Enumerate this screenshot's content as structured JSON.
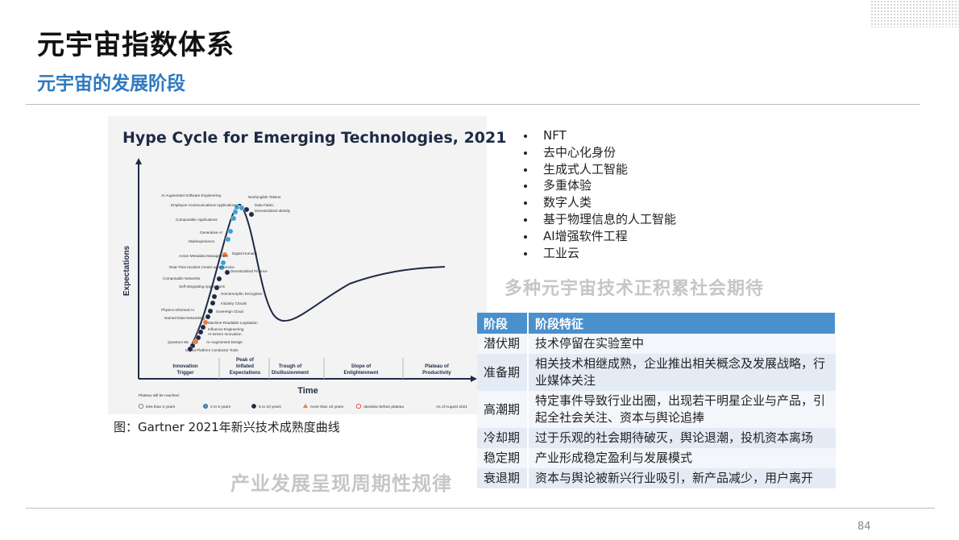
{
  "page": {
    "title": "元宇宙指数体系",
    "subtitle": "元宇宙的发展阶段",
    "page_number": "84"
  },
  "figure": {
    "title": "Hype Cycle for Emerging Technologies, 2021",
    "y_axis_label": "Expectations",
    "x_axis_label": "Time",
    "phases": [
      [
        "Innovation",
        "Trigger"
      ],
      [
        "Peak of",
        "Inflated",
        "Expectations"
      ],
      [
        "Trough of",
        "Disillusionment"
      ],
      [
        "Slope of",
        "Enlightenment"
      ],
      [
        "Plateau of",
        "Productivity"
      ]
    ],
    "legend_title": "Plateau will be reached:",
    "legend": [
      {
        "label": "less than 2 years",
        "color": "#ffffff"
      },
      {
        "label": "2 to 5 years",
        "color": "#3aa0d8"
      },
      {
        "label": "5 to 10 years",
        "color": "#1e2a45"
      },
      {
        "label": "more than 10 years",
        "color": "#f07a38"
      },
      {
        "label": "obsolete before plateau",
        "color": "#e05050"
      }
    ],
    "date_note": "As of August 2021",
    "technologies": [
      {
        "name": "AI Augmented Software Engineering",
        "color": "#3aa0d8"
      },
      {
        "name": "Nonfungible Tokens",
        "color": "#3aa0d8"
      },
      {
        "name": "Employee Communications Applications",
        "color": "#3aa0d8"
      },
      {
        "name": "Data Fabric",
        "color": "#1e2a45"
      },
      {
        "name": "Decentralized Identity",
        "color": "#1e2a45"
      },
      {
        "name": "Composable Applications",
        "color": "#3aa0d8"
      },
      {
        "name": "Generative AI",
        "color": "#3aa0d8"
      },
      {
        "name": "Multiexperience",
        "color": "#3aa0d8"
      },
      {
        "name": "Digital Humans",
        "color": "#f07a38"
      },
      {
        "name": "Active Metadata Management",
        "color": "#3aa0d8"
      },
      {
        "name": "Real-Time Incident Center-as-a-Service",
        "color": "#3aa0d8"
      },
      {
        "name": "Decentralized Finance",
        "color": "#1e2a45"
      },
      {
        "name": "Composable Networks",
        "color": "#1e2a45"
      },
      {
        "name": "Self-Integrating Applications",
        "color": "#1e2a45"
      },
      {
        "name": "Homomorphic Encryption",
        "color": "#1e2a45"
      },
      {
        "name": "Industry Clouds",
        "color": "#1e2a45"
      },
      {
        "name": "Physics-Informed AI",
        "color": "#1e2a45"
      },
      {
        "name": "Sovereign Cloud",
        "color": "#1e2a45"
      },
      {
        "name": "Named Data Networking",
        "color": "#f07a38"
      },
      {
        "name": "Machine-Readable Legislation",
        "color": "#1e2a45"
      },
      {
        "name": "Influence Engineering",
        "color": "#1e2a45"
      },
      {
        "name": "AI-Driven Innovation",
        "color": "#1e2a45"
      },
      {
        "name": "Quantum ML",
        "color": "#f07a38"
      },
      {
        "name": "AI-Augmented Design",
        "color": "#1e2a45"
      },
      {
        "name": "Digital Platform Conductor Tools",
        "color": "#1e2a45"
      }
    ],
    "caption": "图：Gartner 2021年新兴技术成熟度曲线",
    "overlay_text": "产业发展呈现周期性规律"
  },
  "bullets": {
    "items": [
      "NFT",
      "去中心化身份",
      "生成式人工智能",
      "多重体验",
      "数字人类",
      "基于物理信息的人工智能",
      "AI增强软件工程",
      "工业云"
    ],
    "overlay_text": "多种元宇宙技术正积累社会期待"
  },
  "table": {
    "headers": [
      "阶段",
      "阶段特征"
    ],
    "rows": [
      {
        "stage": "潜伏期",
        "desc": "技术停留在实验室中"
      },
      {
        "stage": "准备期",
        "desc": "相关技术相继成熟，企业推出相关概念及发展战略，行业媒体关注"
      },
      {
        "stage": "高潮期",
        "desc": "特定事件导致行业出圈，出现若干明星企业与产品，引起全社会关注、资本与舆论追捧"
      },
      {
        "stage": "冷却期",
        "desc": "过于乐观的社会期待破灭，舆论退潮，投机资本离场"
      },
      {
        "stage": "稳定期",
        "desc": "产业形成稳定盈利与发展模式"
      },
      {
        "stage": "衰退期",
        "desc": "资本与舆论被新兴行业吸引，新产品减少，用户离开"
      }
    ]
  }
}
